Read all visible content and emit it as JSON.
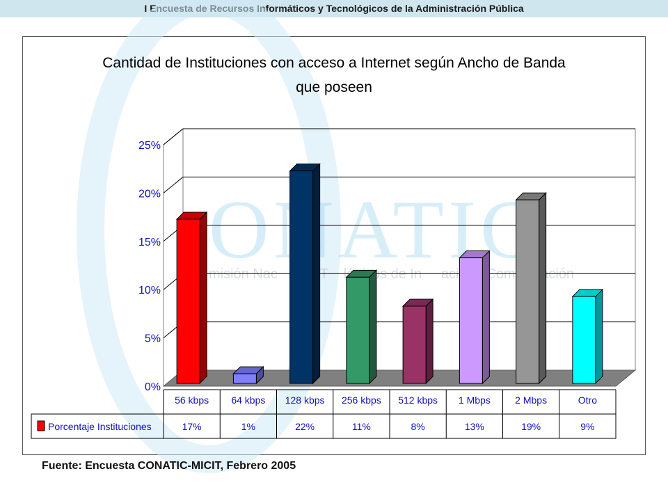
{
  "header": {
    "title": "I Encuesta de Recursos Informáticos y Tecnológicos de la Administración Pública"
  },
  "watermark": {
    "logo_text": "ONATIC",
    "tagline": "misión Nac      de T    lógicos de In     ació     Comunicación"
  },
  "source": {
    "text": "Fuente: Encuesta CONATIC-MICIT, Febrero 2005"
  },
  "chart_data": {
    "type": "bar",
    "title_lines": [
      "Cantidad de Instituciones con acceso a Internet según Ancho de Banda",
      "que poseen"
    ],
    "categories": [
      "56 kbps",
      "64 kbps",
      "128 kbps",
      "256 kbps",
      "512 kbps",
      "1 Mbps",
      "2 Mbps",
      "Otro"
    ],
    "series": [
      {
        "name": "Porcentaje Instituciones",
        "values": [
          17,
          1,
          22,
          11,
          8,
          13,
          19,
          9
        ],
        "labels": [
          "17%",
          "1%",
          "22%",
          "11%",
          "8%",
          "13%",
          "19%",
          "9%"
        ]
      }
    ],
    "bar_colors": [
      "#ff0000",
      "#8080ff",
      "#003366",
      "#339966",
      "#993366",
      "#cc99ff",
      "#969696",
      "#00ffff"
    ],
    "ylim": [
      0,
      25
    ],
    "yticks": [
      0,
      5,
      10,
      15,
      20,
      25
    ],
    "ytick_labels": [
      "0%",
      "5%",
      "10%",
      "15%",
      "20%",
      "25%"
    ],
    "grid": true,
    "legend": "data-table"
  }
}
